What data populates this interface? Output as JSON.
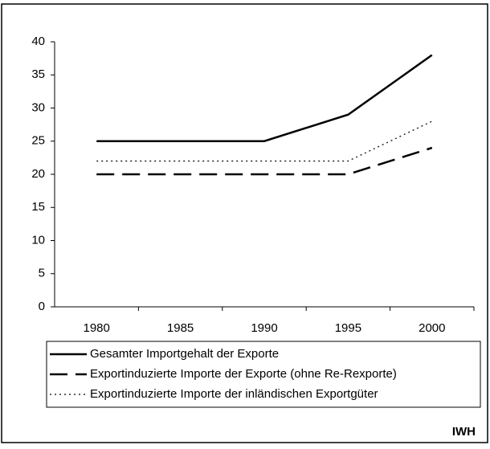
{
  "chart_data": {
    "type": "line",
    "categories": [
      "1980",
      "1985",
      "1990",
      "1995",
      "2000"
    ],
    "series": [
      {
        "name": "Gesamter Importgehalt der Exporte",
        "color": "#000000",
        "dash": "solid",
        "values": [
          25,
          25,
          25,
          29,
          38
        ]
      },
      {
        "name": "Exportinduzierte Importe der Exporte (ohne Re-Rexporte)",
        "color": "#000000",
        "dash": "dashed",
        "values": [
          20,
          20,
          20,
          20,
          24
        ]
      },
      {
        "name": "Exportinduzierte Importe der inländischen Exportgüter",
        "color": "#000000",
        "dash": "dotted",
        "values": [
          22,
          22,
          22,
          22,
          28
        ]
      }
    ],
    "ylim": [
      0,
      40
    ],
    "yticks": [
      0,
      5,
      10,
      15,
      20,
      25,
      30,
      35,
      40
    ],
    "grid": false,
    "legend": "bottom",
    "source": "IWH"
  }
}
